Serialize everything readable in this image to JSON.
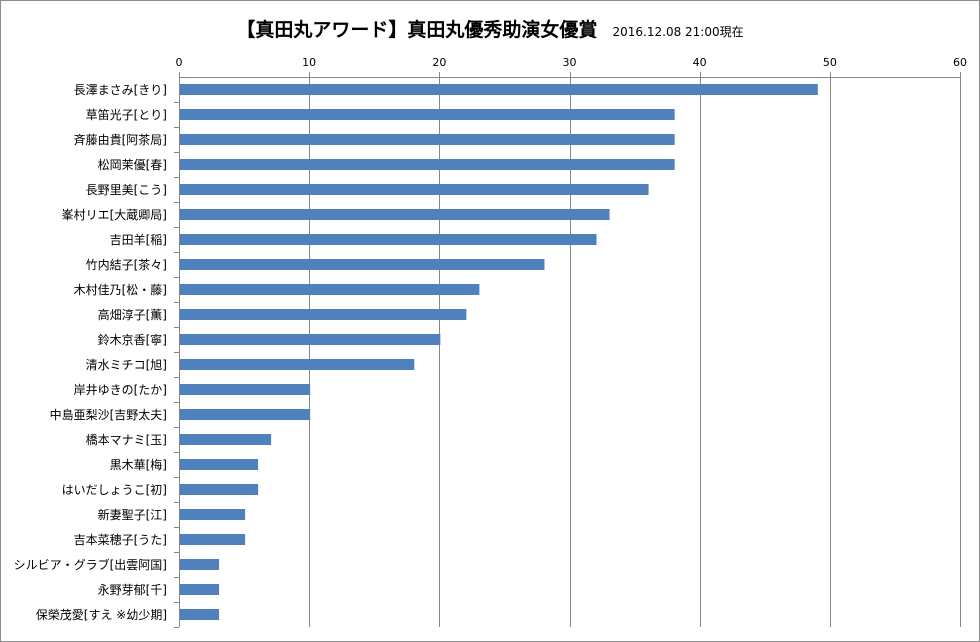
{
  "chart_data": {
    "type": "bar",
    "orientation": "horizontal",
    "title": "【真田丸アワード】真田丸優秀助演女優賞",
    "subtitle": "2016.12.08  21:00現在",
    "xlabel": "",
    "ylabel": "",
    "xlim": [
      0,
      60
    ],
    "xticks": [
      0,
      10,
      20,
      30,
      40,
      50,
      60
    ],
    "xtick_labels": [
      "0",
      "10",
      "20",
      "30",
      "40",
      "50",
      "60"
    ],
    "grid": true,
    "axis_position": "top",
    "bar_color": "#4f81bd",
    "grid_color": "#868686",
    "categories": [
      "長澤まさみ[きり]",
      "草笛光子[とり]",
      "斉藤由貴[阿茶局]",
      "松岡茉優[春]",
      "長野里美[こう]",
      "峯村リエ[大蔵卿局]",
      "吉田羊[稲]",
      "竹内結子[茶々]",
      "木村佳乃[松・藤]",
      "高畑淳子[薫]",
      "鈴木京香[寧]",
      "清水ミチコ[旭]",
      "岸井ゆきの[たか]",
      "中島亜梨沙[吉野太夫]",
      "橋本マナミ[玉]",
      "黒木華[梅]",
      "はいだしょうこ[初]",
      "新妻聖子[江]",
      "吉本菜穂子[うた]",
      "シルビア・グラブ[出雲阿国]",
      "永野芽郁[千]",
      "保榮茂愛[すえ ※幼少期]"
    ],
    "values": [
      49,
      38,
      38,
      38,
      36,
      33,
      32,
      28,
      23,
      22,
      20,
      18,
      10,
      10,
      7,
      6,
      6,
      5,
      5,
      3,
      3,
      3
    ]
  }
}
